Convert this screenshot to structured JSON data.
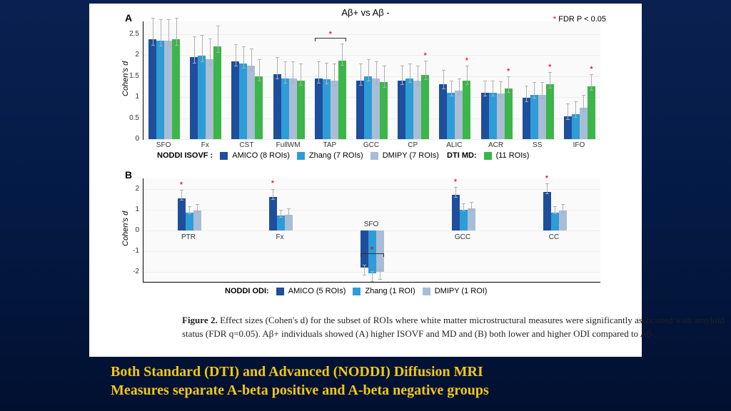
{
  "figure": {
    "top_title": "Aβ+ vs Aβ -",
    "fdr_label_star": "*",
    "fdr_label": " FDR P < 0.05",
    "panelA_label": "A",
    "panelB_label": "B",
    "caption_lead": "Figure 2.",
    "caption": " Effect sizes (Cohen's d) for the subset of ROIs where white matter microstructural measures were significantly associated with amyloid status (FDR q=0.05). Aβ+ individuals showed (A) higher ISOVF and MD and (B) both lower and higher ODI compared to Aβ-.",
    "bottom_line1": "Both Standard (DTI) and Advanced (NODDI) Diffusion MRI",
    "bottom_line2": "Measures separate A-beta positive and A-beta negative groups"
  },
  "colors": {
    "amico": "#1f4e9c",
    "zhang": "#2e9cd6",
    "dmipy": "#a8bdd6",
    "dti": "#3cb54a",
    "error": "#b0b0b0",
    "star": "#d40000",
    "bg": "#ffffff"
  },
  "panelA": {
    "ylabel": "Cohen's d",
    "ylim": [
      0,
      2.8
    ],
    "yticks": [
      0,
      0.5,
      1,
      1.5,
      2,
      2.5
    ],
    "categories": [
      "SFO",
      "Fx",
      "CST",
      "FullWM",
      "TAP",
      "GCC",
      "CP",
      "ALIC",
      "ACR",
      "SS",
      "IFO"
    ],
    "series": [
      "amico",
      "zhang",
      "dmipy",
      "dti"
    ],
    "values": {
      "amico": [
        2.38,
        1.95,
        1.85,
        1.55,
        1.45,
        1.4,
        1.4,
        1.3,
        1.1,
        0.98,
        0.55
      ],
      "zhang": [
        2.35,
        1.98,
        1.8,
        1.45,
        1.42,
        1.5,
        1.45,
        1.1,
        1.1,
        1.05,
        0.6
      ],
      "dmipy": [
        2.35,
        1.9,
        1.75,
        1.45,
        1.4,
        1.45,
        1.4,
        1.15,
        1.08,
        1.05,
        0.75
      ],
      "dti": [
        2.38,
        2.2,
        1.5,
        1.4,
        1.87,
        1.35,
        1.52,
        1.4,
        1.2,
        1.3,
        1.25
      ]
    },
    "errors": {
      "amico": [
        0.5,
        0.5,
        0.4,
        0.4,
        0.4,
        0.4,
        0.35,
        0.35,
        0.3,
        0.3,
        0.3
      ],
      "zhang": [
        0.5,
        0.5,
        0.4,
        0.4,
        0.4,
        0.4,
        0.35,
        0.3,
        0.3,
        0.3,
        0.3
      ],
      "dmipy": [
        0.5,
        0.5,
        0.4,
        0.4,
        0.4,
        0.4,
        0.35,
        0.3,
        0.3,
        0.3,
        0.3
      ],
      "dti": [
        0.5,
        0.5,
        0.4,
        0.4,
        0.4,
        0.4,
        0.35,
        0.35,
        0.3,
        0.3,
        0.3
      ]
    },
    "stars_group": [
      4
    ],
    "stars_single": {
      "6": "dti",
      "7": "dti",
      "8": "dti",
      "9": "dti",
      "10": "dti"
    },
    "legend_prefix": "NODDI ISOVF :",
    "legend": [
      {
        "color": "amico",
        "label": "AMICO (8 ROIs)"
      },
      {
        "color": "zhang",
        "label": "Zhang (7 ROIs)"
      },
      {
        "color": "dmipy",
        "label": "DMIPY (7 ROIs)"
      }
    ],
    "legend2_prefix": "DTI MD:",
    "legend2": [
      {
        "color": "dti",
        "label": "(11 ROIs)"
      }
    ]
  },
  "panelB": {
    "ylabel": "Cohen's d",
    "ylim": [
      -2.5,
      2.5
    ],
    "yticks": [
      -2,
      -1,
      0,
      1,
      2
    ],
    "categories": [
      "PTR",
      "Fx",
      "SFO",
      "GCC",
      "CC"
    ],
    "series": [
      "amico",
      "zhang",
      "dmipy"
    ],
    "values": {
      "amico": [
        1.55,
        1.6,
        -1.8,
        1.7,
        1.85
      ],
      "zhang": [
        0.85,
        0.7,
        -2.1,
        1.0,
        0.85
      ],
      "dmipy": [
        0.95,
        0.75,
        -2.0,
        1.05,
        0.95
      ]
    },
    "errors": {
      "amico": [
        0.4,
        0.4,
        0.4,
        0.4,
        0.4
      ],
      "zhang": [
        0.3,
        0.3,
        0.4,
        0.3,
        0.3
      ],
      "dmipy": [
        0.3,
        0.3,
        0.4,
        0.3,
        0.3
      ]
    },
    "stars_group": [
      2
    ],
    "stars_single": {
      "0": "amico",
      "1": "amico",
      "3": "amico",
      "4": "amico"
    },
    "legend_prefix": "NODDI ODI:",
    "legend": [
      {
        "color": "amico",
        "label": "AMICO (5 ROIs)"
      },
      {
        "color": "zhang",
        "label": "Zhang (1 ROI)"
      },
      {
        "color": "dmipy",
        "label": "DMIPY (1 ROI)"
      }
    ]
  }
}
